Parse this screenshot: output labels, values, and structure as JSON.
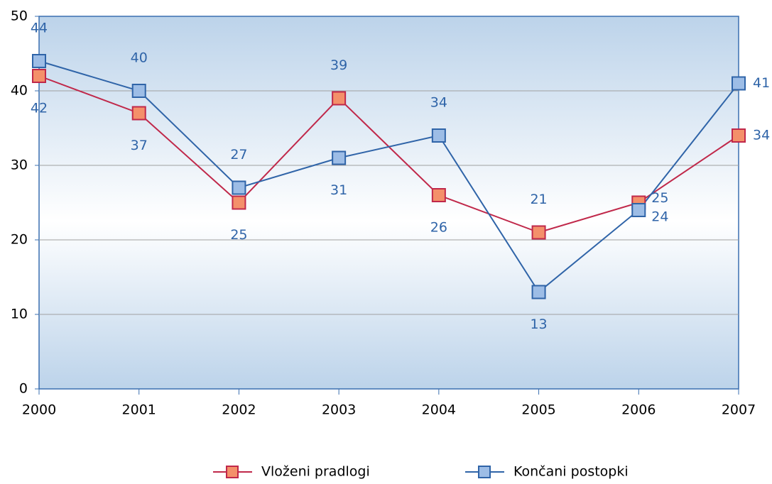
{
  "chart_data": {
    "type": "line",
    "x": [
      2000,
      2001,
      2002,
      2003,
      2004,
      2005,
      2006,
      2007
    ],
    "xlim": [
      2000,
      2007
    ],
    "xticks": [
      2000,
      2001,
      2002,
      2003,
      2004,
      2005,
      2006,
      2007
    ],
    "ylim": [
      0,
      50
    ],
    "yticks": [
      0,
      10,
      20,
      30,
      40,
      50
    ],
    "grid": true,
    "legend": "bottom",
    "series": [
      {
        "name": "Vloženi pradlogi",
        "color": "#c0284a",
        "marker_color": "#f4906a",
        "values": [
          42,
          37,
          25,
          39,
          26,
          21,
          25,
          34
        ]
      },
      {
        "name": "Končani postopki",
        "color": "#2f64a8",
        "marker_color": "#9dbde6",
        "values": [
          44,
          40,
          27,
          31,
          34,
          13,
          24,
          41
        ]
      }
    ]
  }
}
